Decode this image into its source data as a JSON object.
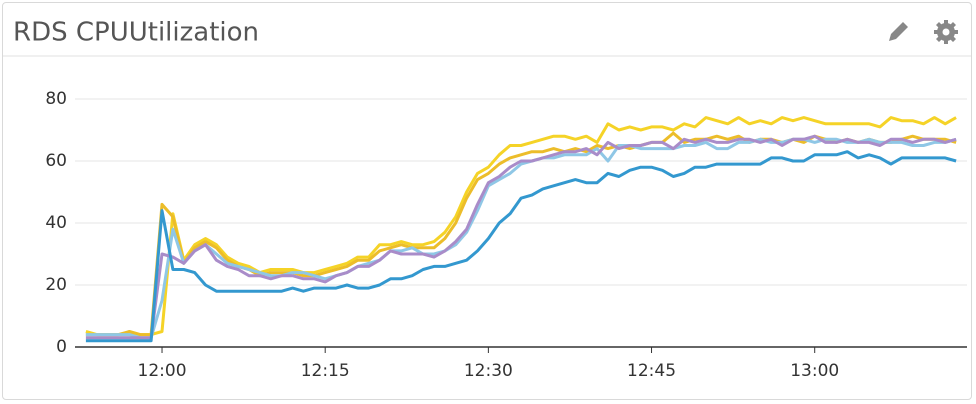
{
  "chart_data": {
    "type": "line",
    "title": "RDS CPUUtilization",
    "x": [
      "11:53",
      "11:54",
      "11:55",
      "11:56",
      "11:57",
      "11:58",
      "11:59",
      "12:00",
      "12:01",
      "12:02",
      "12:03",
      "12:04",
      "12:05",
      "12:06",
      "12:07",
      "12:08",
      "12:09",
      "12:10",
      "12:11",
      "12:12",
      "12:13",
      "12:14",
      "12:15",
      "12:16",
      "12:17",
      "12:18",
      "12:19",
      "12:20",
      "12:21",
      "12:22",
      "12:23",
      "12:24",
      "12:25",
      "12:26",
      "12:27",
      "12:28",
      "12:29",
      "12:30",
      "12:31",
      "12:32",
      "12:33",
      "12:34",
      "12:35",
      "12:36",
      "12:37",
      "12:38",
      "12:39",
      "12:40",
      "12:41",
      "12:42",
      "12:43",
      "12:44",
      "12:45",
      "12:46",
      "12:47",
      "12:48",
      "12:49",
      "12:50",
      "12:51",
      "12:52",
      "12:53",
      "12:54",
      "12:55",
      "12:56",
      "12:57",
      "12:58",
      "12:59",
      "13:00",
      "13:01",
      "13:02",
      "13:03",
      "13:04",
      "13:05",
      "13:06",
      "13:07",
      "13:08",
      "13:09",
      "13:10",
      "13:11",
      "13:12",
      "13:13"
    ],
    "series": [
      {
        "color": "#f5d327",
        "values": [
          5,
          4,
          4,
          4,
          4,
          4,
          4,
          5,
          43,
          28,
          33,
          35,
          33,
          29,
          27,
          26,
          24,
          25,
          25,
          25,
          24,
          24,
          25,
          26,
          27,
          29,
          29,
          33,
          33,
          34,
          33,
          33,
          34,
          37,
          42,
          50,
          56,
          58,
          62,
          65,
          65,
          66,
          67,
          68,
          68,
          67,
          68,
          66,
          72,
          70,
          71,
          70,
          71,
          71,
          70,
          72,
          71,
          74,
          73,
          72,
          74,
          72,
          73,
          72,
          74,
          73,
          74,
          73,
          72,
          72,
          72,
          72,
          72,
          71,
          74,
          73,
          73,
          72,
          74,
          72,
          74
        ]
      },
      {
        "color": "#ecbd2a",
        "values": [
          4,
          4,
          4,
          4,
          5,
          4,
          4,
          46,
          42,
          27,
          32,
          34,
          32,
          28,
          26,
          25,
          23,
          24,
          24,
          24,
          23,
          23,
          24,
          25,
          26,
          28,
          28,
          31,
          32,
          33,
          32,
          32,
          32,
          35,
          40,
          48,
          54,
          56,
          59,
          61,
          62,
          63,
          63,
          64,
          63,
          64,
          63,
          65,
          64,
          65,
          64,
          65,
          66,
          66,
          69,
          66,
          67,
          67,
          68,
          67,
          68,
          66,
          67,
          67,
          66,
          67,
          66,
          68,
          67,
          66,
          67,
          66,
          67,
          66,
          66,
          67,
          68,
          67,
          67,
          67,
          66
        ]
      },
      {
        "color": "#8fc7e6",
        "values": [
          4,
          4,
          4,
          4,
          4,
          3,
          3,
          15,
          38,
          27,
          31,
          33,
          30,
          27,
          26,
          25,
          24,
          23,
          23,
          24,
          24,
          23,
          22,
          23,
          24,
          26,
          27,
          28,
          31,
          31,
          32,
          30,
          30,
          31,
          33,
          37,
          44,
          52,
          54,
          56,
          59,
          60,
          61,
          61,
          62,
          62,
          62,
          64,
          60,
          65,
          65,
          64,
          64,
          64,
          64,
          65,
          65,
          66,
          64,
          64,
          66,
          66,
          67,
          66,
          66,
          67,
          67,
          66,
          67,
          67,
          66,
          66,
          67,
          66,
          66,
          66,
          65,
          65,
          66,
          66,
          67
        ]
      },
      {
        "color": "#a98cc9",
        "values": [
          3,
          3,
          3,
          3,
          3,
          3,
          3,
          30,
          29,
          27,
          31,
          33,
          28,
          26,
          25,
          23,
          23,
          22,
          23,
          23,
          22,
          22,
          21,
          23,
          24,
          26,
          26,
          28,
          31,
          30,
          30,
          30,
          29,
          31,
          34,
          38,
          46,
          53,
          55,
          58,
          60,
          60,
          61,
          62,
          63,
          63,
          64,
          62,
          66,
          64,
          65,
          65,
          66,
          66,
          64,
          67,
          66,
          67,
          66,
          66,
          67,
          67,
          66,
          67,
          65,
          67,
          67,
          68,
          66,
          66,
          67,
          66,
          66,
          65,
          67,
          67,
          66,
          67,
          67,
          66,
          67
        ]
      },
      {
        "color": "#3398cf",
        "values": [
          2,
          2,
          2,
          2,
          2,
          2,
          2,
          44,
          25,
          25,
          24,
          20,
          18,
          18,
          18,
          18,
          18,
          18,
          18,
          19,
          18,
          19,
          19,
          19,
          20,
          19,
          19,
          20,
          22,
          22,
          23,
          25,
          26,
          26,
          27,
          28,
          31,
          35,
          40,
          43,
          48,
          49,
          51,
          52,
          53,
          54,
          53,
          53,
          56,
          55,
          57,
          58,
          58,
          57,
          55,
          56,
          58,
          58,
          59,
          59,
          59,
          59,
          59,
          61,
          61,
          60,
          60,
          62,
          62,
          62,
          63,
          61,
          62,
          61,
          59,
          61,
          61,
          61,
          61,
          61,
          60
        ]
      }
    ],
    "xlim": [
      "11:52",
      "13:14"
    ],
    "xticks": [
      "12:00",
      "12:15",
      "12:30",
      "12:45",
      "13:00"
    ],
    "ylim": [
      0,
      80
    ],
    "yticks": [
      0,
      20,
      40,
      60,
      80
    ],
    "grid": true
  }
}
